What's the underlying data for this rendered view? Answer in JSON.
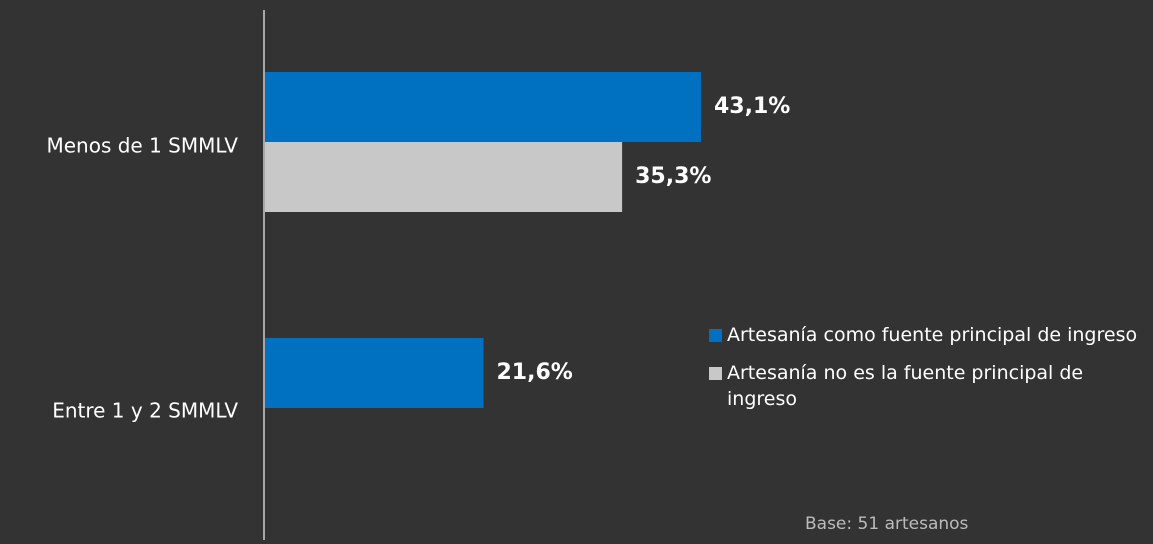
{
  "chart_data": {
    "type": "bar",
    "orientation": "horizontal",
    "categories": [
      "Menos de 1 SMMLV",
      "Entre 1 y 2 SMMLV"
    ],
    "series": [
      {
        "name": "Artesanía como fuente principal de ingreso",
        "color": "#0070C0",
        "values": [
          43.1,
          21.6
        ],
        "labels": [
          "43,1%",
          "21,6%"
        ]
      },
      {
        "name": "Artesanía no es la fuente principal de ingreso",
        "color": "#C8C8C8",
        "values": [
          35.3,
          null
        ],
        "labels": [
          "35,3%",
          null
        ]
      }
    ],
    "xlim": [
      0,
      100
    ],
    "grid": false,
    "legend_position": "right",
    "note": "Base: 51 artesanos"
  }
}
